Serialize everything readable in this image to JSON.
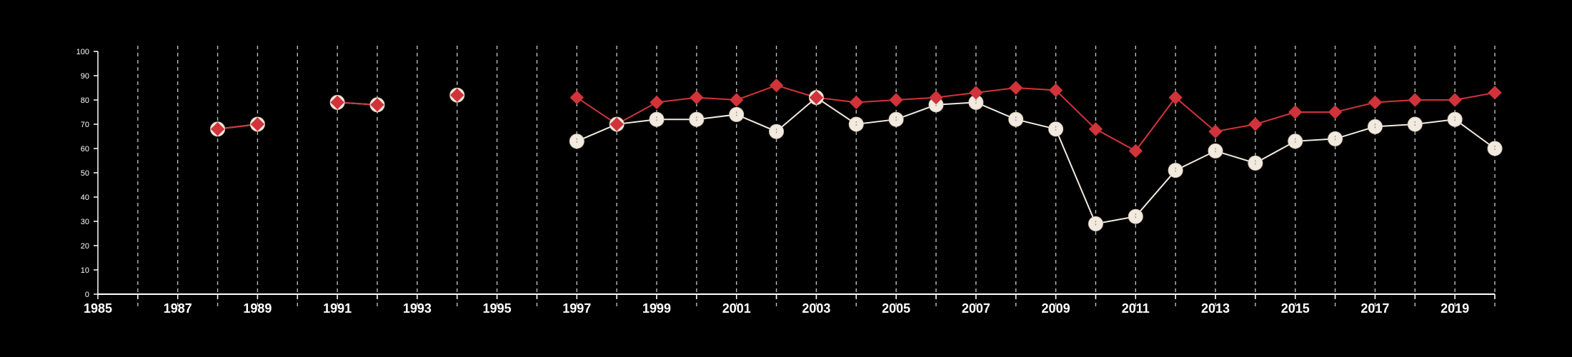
{
  "chart_data": {
    "type": "line",
    "title": "",
    "xlabel": "",
    "ylabel": "",
    "xlim": [
      1985,
      2020
    ],
    "ylim": [
      0,
      100
    ],
    "y_ticks": [
      0,
      10,
      20,
      30,
      40,
      50,
      60,
      70,
      80,
      90,
      100
    ],
    "x_tick_labels": [
      1985,
      1987,
      1989,
      1991,
      1993,
      1995,
      1997,
      1999,
      2001,
      2003,
      2005,
      2007,
      2009,
      2011,
      2013,
      2015,
      2017,
      2019
    ],
    "grid": "vertical dashed at each year",
    "legend": "none",
    "series": [
      {
        "marker": "diamond",
        "color": "#d0343a",
        "x": [
          1988,
          1989,
          1991,
          1992,
          1994,
          1997,
          1998,
          1999,
          2000,
          2001,
          2002,
          2003,
          2004,
          2005,
          2006,
          2007,
          2008,
          2009,
          2010,
          2011,
          2012,
          2013,
          2014,
          2015,
          2016,
          2017,
          2018,
          2019,
          2020
        ],
        "values": [
          68,
          70,
          79,
          78,
          82,
          81,
          70,
          79,
          81,
          80,
          86,
          81,
          79,
          80,
          81,
          83,
          85,
          84,
          68,
          59,
          81,
          67,
          70,
          75,
          75,
          79,
          80,
          80,
          83
        ]
      },
      {
        "marker": "circle",
        "color": "#f3eadf",
        "x": [
          1988,
          1989,
          1991,
          1992,
          1994,
          1997,
          1998,
          1999,
          2000,
          2001,
          2002,
          2003,
          2004,
          2005,
          2006,
          2007,
          2008,
          2009,
          2010,
          2011,
          2012,
          2013,
          2014,
          2015,
          2016,
          2017,
          2018,
          2019,
          2020
        ],
        "values": [
          68,
          70,
          79,
          78,
          82,
          63,
          70,
          72,
          72,
          74,
          67,
          81,
          70,
          72,
          78,
          79,
          72,
          68,
          29,
          32,
          51,
          59,
          54,
          63,
          64,
          69,
          70,
          72,
          60
        ]
      }
    ]
  }
}
